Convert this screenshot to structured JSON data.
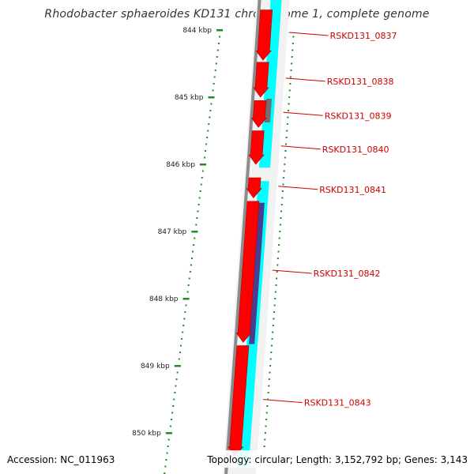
{
  "title": "Rhodobacter sphaeroides KD131 chromosome 1, complete genome",
  "footer": {
    "accession": "Accession: NC_011963",
    "summary": "Topology: circular; Length: 3,152,792 bp; Genes: 3,143"
  },
  "colors": {
    "forward_gene": "#ff0000",
    "reverse_gene": "#00ffff",
    "gray_gene": "#707070",
    "purple_gene": "#4a3d8f",
    "backbone": "#8c8c8c",
    "tick": "#228b22",
    "label": "#cc0000"
  },
  "scale_kbp": [
    844,
    845,
    846,
    847,
    848,
    849,
    850
  ],
  "ruler_labels": [
    "844 kbp",
    "845 kbp",
    "846 kbp",
    "847 kbp",
    "848 kbp",
    "849 kbp",
    "850 kbp"
  ],
  "genes": [
    {
      "id": "RSKD131_0837",
      "strand": "+",
      "start_kbp": 843.7,
      "end_kbp": 844.45
    },
    {
      "id": "RSKD131_0838",
      "strand": "+",
      "start_kbp": 844.48,
      "end_kbp": 845.0
    },
    {
      "id": "RSKD131_0839",
      "strand": "+",
      "start_kbp": 845.05,
      "end_kbp": 845.45
    },
    {
      "id": "RSKD131_0840",
      "strand": "+",
      "start_kbp": 845.5,
      "end_kbp": 846.0
    },
    {
      "id": "RSKD131_0841",
      "strand": "+",
      "start_kbp": 846.2,
      "end_kbp": 846.5
    },
    {
      "id": "RSKD131_0842",
      "strand": "+",
      "start_kbp": 846.55,
      "end_kbp": 848.65
    },
    {
      "id": "RSKD131_0843",
      "strand": "+",
      "start_kbp": 848.7,
      "end_kbp": 850.35
    }
  ],
  "reverse_features": [
    {
      "start_kbp": 843.5,
      "end_kbp": 845.0,
      "color": "cyan"
    },
    {
      "start_kbp": 845.0,
      "end_kbp": 845.4,
      "color": "gray"
    },
    {
      "start_kbp": 845.4,
      "end_kbp": 846.05,
      "color": "cyan"
    },
    {
      "start_kbp": 846.25,
      "end_kbp": 846.55,
      "color": "cyan"
    },
    {
      "start_kbp": 846.55,
      "end_kbp": 848.7,
      "color": "purple"
    },
    {
      "start_kbp": 848.7,
      "end_kbp": 850.5,
      "color": "cyan"
    }
  ]
}
